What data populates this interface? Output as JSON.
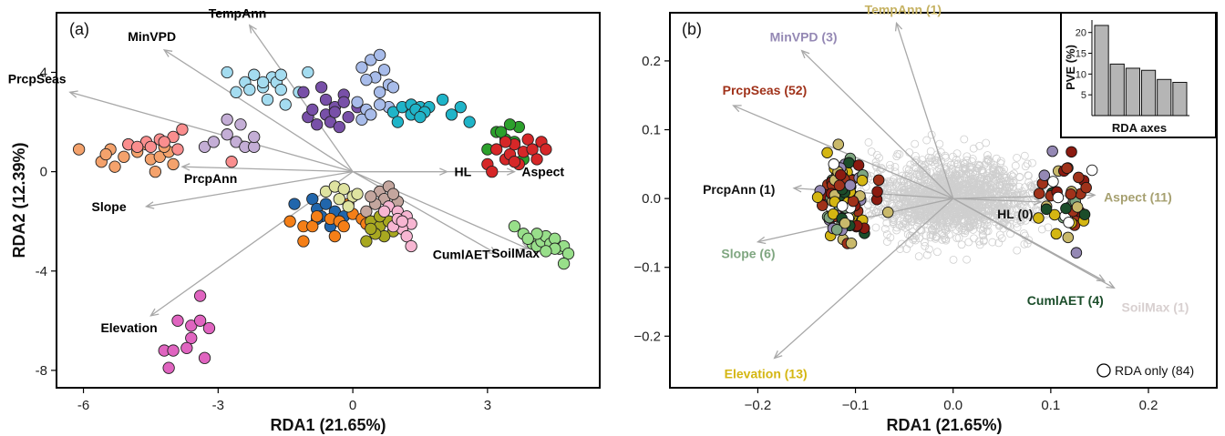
{
  "chart_data": [
    {
      "type": "scatter",
      "panel_label": "(a)",
      "xlabel": "RDA1 (21.65%)",
      "ylabel": "RDA2 (12.39%)",
      "xlim": [
        -6.6,
        5.5
      ],
      "ylim": [
        -8.7,
        6.4
      ],
      "xticks": [
        -6,
        -3,
        0,
        3
      ],
      "yticks": [
        -8,
        -4,
        0,
        4
      ],
      "grid": false,
      "vectors": [
        {
          "name": "TempAnn",
          "x": -2.3,
          "y": 5.9,
          "color": "#000000"
        },
        {
          "name": "MinVPD",
          "x": -4.2,
          "y": 4.9,
          "color": "#000000"
        },
        {
          "name": "PrcpSeas",
          "x": -6.3,
          "y": 3.2,
          "color": "#000000"
        },
        {
          "name": "PrcpAnn",
          "x": -3.8,
          "y": 0.2,
          "color": "#000000"
        },
        {
          "name": "Slope",
          "x": -4.6,
          "y": -1.4,
          "color": "#000000"
        },
        {
          "name": "Elevation",
          "x": -4.5,
          "y": -5.8,
          "color": "#000000"
        },
        {
          "name": "HL",
          "x": 2.1,
          "y": 0.0,
          "color": "#000000"
        },
        {
          "name": "Aspect",
          "x": 3.6,
          "y": 0.0,
          "color": "#000000"
        },
        {
          "name": "CumlAET",
          "x": 3.2,
          "y": -3.3,
          "color": "#000000"
        },
        {
          "name": "SoilMax",
          "x": 3.9,
          "y": -3.1,
          "color": "#000000"
        }
      ],
      "groups": [
        {
          "color": "#f4a26c",
          "points": [
            [
              -6.1,
              0.9
            ],
            [
              -5.6,
              0.4
            ],
            [
              -5.4,
              0.9
            ],
            [
              -5.3,
              0.2
            ],
            [
              -5.1,
              0.6
            ],
            [
              -5.0,
              1.1
            ],
            [
              -4.8,
              0.8
            ],
            [
              -4.6,
              1.1
            ],
            [
              -4.5,
              0.5
            ],
            [
              -4.4,
              0.0
            ],
            [
              -4.3,
              0.6
            ],
            [
              -4.1,
              0.8
            ],
            [
              -4.0,
              0.3
            ],
            [
              -5.5,
              0.7
            ],
            [
              -4.2,
              1.0
            ]
          ]
        },
        {
          "color": "#fa8e8e",
          "points": [
            [
              -5.0,
              1.1
            ],
            [
              -4.6,
              1.2
            ],
            [
              -4.3,
              1.3
            ],
            [
              -4.0,
              1.4
            ],
            [
              -3.8,
              1.7
            ],
            [
              -4.5,
              1.0
            ],
            [
              -3.9,
              0.9
            ],
            [
              -2.7,
              0.4
            ],
            [
              -4.8,
              1.0
            ],
            [
              -4.2,
              1.2
            ]
          ]
        },
        {
          "color": "#c4aed6",
          "points": [
            [
              -3.3,
              1.0
            ],
            [
              -3.1,
              1.2
            ],
            [
              -2.8,
              1.5
            ],
            [
              -2.6,
              1.2
            ],
            [
              -2.4,
              1.0
            ],
            [
              -2.2,
              1.0
            ],
            [
              -2.8,
              2.1
            ],
            [
              -2.5,
              1.9
            ],
            [
              -2.2,
              1.4
            ]
          ]
        },
        {
          "color": "#a4dcf0",
          "points": [
            [
              -2.8,
              4.0
            ],
            [
              -2.6,
              3.2
            ],
            [
              -2.4,
              3.6
            ],
            [
              -2.2,
              3.9
            ],
            [
              -2.0,
              3.4
            ],
            [
              -1.8,
              3.8
            ],
            [
              -1.7,
              3.6
            ],
            [
              -1.9,
              2.9
            ],
            [
              -1.6,
              3.3
            ],
            [
              -1.5,
              2.7
            ],
            [
              -1.2,
              3.2
            ],
            [
              -1.0,
              4.0
            ],
            [
              -1.6,
              3.9
            ],
            [
              -2.3,
              3.3
            ],
            [
              -2.0,
              3.6
            ]
          ]
        },
        {
          "color": "#7850a8",
          "points": [
            [
              -1.1,
              3.2
            ],
            [
              -0.7,
              3.4
            ],
            [
              -0.6,
              2.9
            ],
            [
              -0.4,
              2.6
            ],
            [
              -0.2,
              3.1
            ],
            [
              -0.6,
              2.3
            ],
            [
              -0.8,
              1.9
            ],
            [
              -0.5,
              2.0
            ],
            [
              -0.3,
              1.8
            ],
            [
              -0.1,
              2.2
            ],
            [
              0.1,
              2.6
            ],
            [
              -1.0,
              2.2
            ],
            [
              -0.2,
              2.8
            ],
            [
              -0.9,
              2.5
            ],
            [
              -0.4,
              2.4
            ]
          ]
        },
        {
          "color": "#a8bcea",
          "points": [
            [
              0.2,
              4.2
            ],
            [
              0.4,
              4.5
            ],
            [
              0.6,
              4.7
            ],
            [
              0.7,
              4.1
            ],
            [
              0.8,
              3.5
            ],
            [
              0.5,
              3.8
            ],
            [
              0.3,
              3.7
            ],
            [
              0.6,
              3.2
            ],
            [
              0.9,
              3.4
            ],
            [
              0.8,
              2.6
            ],
            [
              0.6,
              2.7
            ],
            [
              0.3,
              2.5
            ],
            [
              0.1,
              2.8
            ],
            [
              0.2,
              2.1
            ],
            [
              0.4,
              2.3
            ]
          ]
        },
        {
          "color": "#1fb4c8",
          "points": [
            [
              0.9,
              2.4
            ],
            [
              1.1,
              2.6
            ],
            [
              1.3,
              2.7
            ],
            [
              1.5,
              2.6
            ],
            [
              1.7,
              2.6
            ],
            [
              1.3,
              2.3
            ],
            [
              1.0,
              2.0
            ],
            [
              2.0,
              2.9
            ],
            [
              2.2,
              2.3
            ],
            [
              2.4,
              2.6
            ],
            [
              2.6,
              2.0
            ],
            [
              1.4,
              2.5
            ],
            [
              1.6,
              2.4
            ],
            [
              1.5,
              2.2
            ]
          ]
        },
        {
          "color": "#2ca02c",
          "points": [
            [
              3.0,
              0.9
            ],
            [
              3.2,
              1.6
            ],
            [
              3.4,
              1.3
            ],
            [
              3.6,
              1.2
            ],
            [
              3.3,
              1.6
            ],
            [
              3.7,
              1.8
            ],
            [
              3.5,
              1.9
            ],
            [
              3.8,
              0.5
            ]
          ]
        },
        {
          "color": "#d62728",
          "points": [
            [
              3.0,
              0.3
            ],
            [
              3.2,
              0.9
            ],
            [
              3.4,
              0.5
            ],
            [
              3.5,
              0.7
            ],
            [
              3.6,
              1.1
            ],
            [
              3.7,
              0.3
            ],
            [
              3.8,
              0.8
            ],
            [
              3.9,
              1.3
            ],
            [
              4.0,
              0.9
            ],
            [
              4.1,
              0.5
            ],
            [
              4.2,
              1.2
            ],
            [
              4.3,
              0.9
            ],
            [
              3.4,
              1.2
            ],
            [
              3.1,
              0.0
            ],
            [
              3.6,
              0.4
            ]
          ]
        },
        {
          "color": "#2166ac",
          "points": [
            [
              -1.3,
              -1.3
            ],
            [
              -0.9,
              -1.1
            ],
            [
              -0.8,
              -1.5
            ],
            [
              -0.7,
              -1.8
            ],
            [
              -0.5,
              -2.2
            ],
            [
              -0.4,
              -1.6
            ],
            [
              -0.6,
              -1.3
            ],
            [
              -0.8,
              -1.9
            ],
            [
              -0.2,
              -1.8
            ]
          ]
        },
        {
          "color": "#f57f17",
          "points": [
            [
              -1.4,
              -2.0
            ],
            [
              -1.1,
              -2.2
            ],
            [
              -1.1,
              -2.8
            ],
            [
              -0.9,
              -2.2
            ],
            [
              -0.8,
              -1.8
            ],
            [
              -0.5,
              -1.9
            ],
            [
              -0.3,
              -2.0
            ],
            [
              -0.2,
              -2.2
            ],
            [
              -0.4,
              -2.6
            ],
            [
              0.0,
              -1.7
            ],
            [
              0.2,
              -1.9
            ],
            [
              -0.1,
              -1.3
            ],
            [
              0.3,
              -2.1
            ]
          ]
        },
        {
          "color": "#dfe3a0",
          "points": [
            [
              -0.6,
              -0.8
            ],
            [
              -0.4,
              -0.6
            ],
            [
              -0.2,
              -0.7
            ],
            [
              0.0,
              -1.0
            ],
            [
              0.1,
              -0.9
            ],
            [
              -0.3,
              -1.1
            ],
            [
              -0.1,
              -1.4
            ]
          ]
        },
        {
          "color": "#c4a69e",
          "points": [
            [
              0.6,
              -0.8
            ],
            [
              0.8,
              -0.6
            ],
            [
              0.7,
              -1.1
            ],
            [
              1.0,
              -1.2
            ],
            [
              0.9,
              -0.9
            ],
            [
              0.5,
              -1.3
            ],
            [
              0.3,
              -1.6
            ],
            [
              0.4,
              -1.0
            ]
          ]
        },
        {
          "color": "#a8a820",
          "points": [
            [
              0.4,
              -2.0
            ],
            [
              0.6,
              -2.2
            ],
            [
              0.8,
              -2.0
            ],
            [
              0.9,
              -2.4
            ],
            [
              0.7,
              -2.6
            ],
            [
              0.5,
              -2.5
            ],
            [
              0.3,
              -2.8
            ],
            [
              0.4,
              -2.3
            ],
            [
              0.6,
              -1.8
            ]
          ]
        },
        {
          "color": "#f7b6d2",
          "points": [
            [
              0.8,
              -1.4
            ],
            [
              1.0,
              -1.6
            ],
            [
              1.2,
              -1.8
            ],
            [
              1.3,
              -2.1
            ],
            [
              1.1,
              -2.3
            ],
            [
              0.9,
              -2.2
            ],
            [
              1.2,
              -2.6
            ],
            [
              1.3,
              -3.0
            ],
            [
              1.0,
              -1.9
            ],
            [
              0.7,
              -1.6
            ],
            [
              1.1,
              -2.0
            ]
          ]
        },
        {
          "color": "#98df8a",
          "points": [
            [
              3.6,
              -2.2
            ],
            [
              3.8,
              -2.5
            ],
            [
              4.0,
              -2.9
            ],
            [
              4.1,
              -3.0
            ],
            [
              4.2,
              -2.8
            ],
            [
              4.3,
              -2.6
            ],
            [
              4.4,
              -2.9
            ],
            [
              4.5,
              -2.7
            ],
            [
              4.6,
              -3.1
            ],
            [
              4.7,
              -3.0
            ],
            [
              4.8,
              -3.3
            ],
            [
              4.7,
              -3.7
            ],
            [
              4.5,
              -3.1
            ],
            [
              4.3,
              -3.2
            ],
            [
              4.1,
              -2.5
            ],
            [
              3.9,
              -2.7
            ]
          ]
        },
        {
          "color": "#e064c0",
          "points": [
            [
              -3.4,
              -5.0
            ],
            [
              -3.9,
              -6.0
            ],
            [
              -3.6,
              -6.2
            ],
            [
              -3.4,
              -6.0
            ],
            [
              -3.2,
              -6.3
            ],
            [
              -3.6,
              -6.7
            ],
            [
              -4.2,
              -7.2
            ],
            [
              -4.0,
              -7.2
            ],
            [
              -3.7,
              -7.1
            ],
            [
              -3.3,
              -7.5
            ],
            [
              -4.1,
              -7.9
            ]
          ]
        }
      ]
    },
    {
      "type": "scatter",
      "panel_label": "(b)",
      "xlabel": "RDA1 (21.65%)",
      "ylabel": "",
      "xlim": [
        -0.29,
        0.27
      ],
      "ylim": [
        -0.275,
        0.27
      ],
      "xticks": [
        -0.2,
        -0.1,
        0.0,
        0.1,
        0.2
      ],
      "xtick_labels": [
        "−0.2",
        "−0.1",
        "0.0",
        "0.1",
        "0.2"
      ],
      "yticks": [
        -0.2,
        -0.1,
        0.0,
        0.1,
        0.2
      ],
      "ytick_labels": [
        "−0.2",
        "−0.1",
        "0.0",
        "0.1",
        "0.2"
      ],
      "grid": false,
      "vectors": [
        {
          "name": "TempAnn (1)",
          "x": -0.058,
          "y": 0.255,
          "color": "#c6b262"
        },
        {
          "name": "MinVPD (3)",
          "x": -0.155,
          "y": 0.215,
          "color": "#9488b4"
        },
        {
          "name": "PrcpSeas (52)",
          "x": -0.225,
          "y": 0.135,
          "color": "#a0321a"
        },
        {
          "name": "PrcpAnn (1)",
          "x": -0.163,
          "y": 0.015,
          "color": "#111111"
        },
        {
          "name": "Slope (6)",
          "x": -0.2,
          "y": -0.063,
          "color": "#7fa680"
        },
        {
          "name": "Elevation (13)",
          "x": -0.183,
          "y": -0.232,
          "color": "#d4b612"
        },
        {
          "name": "HL (0)",
          "x": 0.09,
          "y": -0.005,
          "color": "#111111"
        },
        {
          "name": "Aspect (11)",
          "x": 0.145,
          "y": 0.005,
          "color": "#a6a070"
        },
        {
          "name": "CumlAET (4)",
          "x": 0.155,
          "y": -0.12,
          "color": "#1b4d2a"
        },
        {
          "name": "SoilMax (1)",
          "x": 0.165,
          "y": -0.13,
          "color": "#d8d0d0"
        }
      ],
      "legend": {
        "label": "RDA only (84)",
        "position": "bottom-right"
      },
      "inset": {
        "type": "bar",
        "xlabel": "RDA axes",
        "ylabel": "PVE (%)",
        "yticks": [
          5,
          10,
          15,
          20
        ],
        "ylim": [
          0,
          23
        ],
        "values": [
          21.7,
          12.4,
          11.4,
          10.9,
          8.7,
          8.0
        ]
      }
    }
  ]
}
